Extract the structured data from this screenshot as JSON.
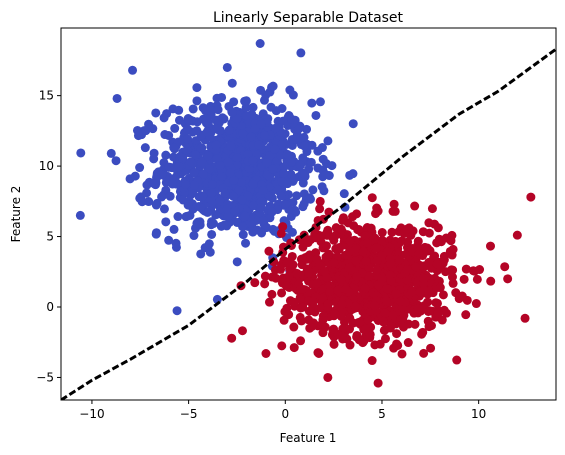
{
  "chart_data": {
    "type": "scatter",
    "title": "Linearly Separable Dataset",
    "xlabel": "Feature 1",
    "ylabel": "Feature 2",
    "xlim": [
      -11.6,
      14.0
    ],
    "ylim": [
      -6.6,
      19.8
    ],
    "x_ticks": [
      -10,
      -5,
      0,
      5,
      10
    ],
    "y_ticks": [
      -5,
      0,
      5,
      10,
      15
    ],
    "grid": false,
    "legend": "none",
    "series": [
      {
        "color": "#3b4cc0",
        "center": [
          -2.5,
          9.8
        ],
        "std": [
          2.0,
          2.4
        ],
        "count": 1000,
        "outliers": [
          [
            -1.3,
            18.7
          ],
          [
            -7.9,
            16.8
          ],
          [
            -3.0,
            17.0
          ],
          [
            -10.6,
            6.5
          ],
          [
            -9.0,
            10.9
          ],
          [
            -8.7,
            14.8
          ],
          [
            3.2,
            4.4
          ]
        ]
      },
      {
        "color": "#b40426",
        "center": [
          4.3,
          2.0
        ],
        "std": [
          2.2,
          2.0
        ],
        "count": 1000,
        "outliers": [
          [
            12.7,
            7.8
          ],
          [
            12.4,
            -0.8
          ],
          [
            12.0,
            5.1
          ],
          [
            4.8,
            -5.4
          ],
          [
            2.2,
            -5.0
          ],
          [
            -1.0,
            -3.3
          ],
          [
            11.5,
            2.0
          ]
        ]
      }
    ],
    "decision_boundary": {
      "style": "dashed",
      "color": "#000000",
      "points": [
        [
          -11.6,
          -6.6
        ],
        [
          -10.0,
          -5.2
        ],
        [
          -8.0,
          -3.7
        ],
        [
          -5.0,
          -1.3
        ],
        [
          -2.0,
          1.8
        ],
        [
          0.0,
          4.1
        ],
        [
          3.0,
          7.2
        ],
        [
          6.0,
          10.6
        ],
        [
          9.0,
          13.7
        ],
        [
          11.0,
          15.3
        ],
        [
          14.0,
          18.3
        ]
      ]
    }
  }
}
